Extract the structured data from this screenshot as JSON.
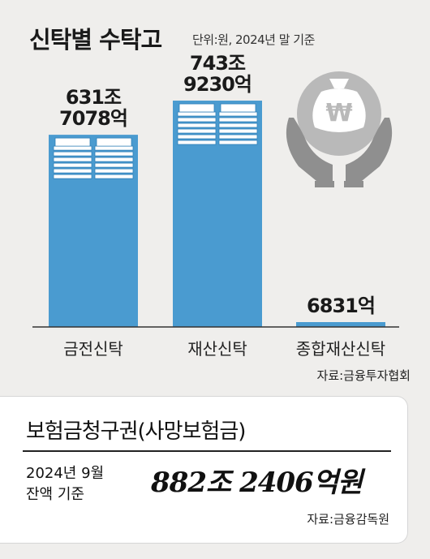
{
  "header": {
    "title": "신탁별 수탁고",
    "unit": "단위:원, 2024년 말 기준"
  },
  "chart_data": {
    "type": "bar",
    "title": "신탁별 수탁고",
    "categories": [
      "금전신탁",
      "재산신탁",
      "종합재산신탁"
    ],
    "values": [
      631.7078,
      743.923,
      0.6831
    ],
    "value_labels": [
      [
        "631조",
        "7078억"
      ],
      [
        "743조",
        "9230억"
      ],
      [
        "6831억"
      ]
    ],
    "value_unit": "조원",
    "ylim": [
      0,
      800
    ],
    "grid": false,
    "colors": {
      "bar": "#4a9bd0",
      "bar_edge": "#2f7fb8"
    }
  },
  "source_chart": "자료:금융투자협회",
  "info": {
    "title": "보험금청구권(사망보험금)",
    "date_line1": "2024년 9월",
    "date_line2": "잔액 기준",
    "amount": "882조 2406억원",
    "source": "자료:금융감독원"
  }
}
